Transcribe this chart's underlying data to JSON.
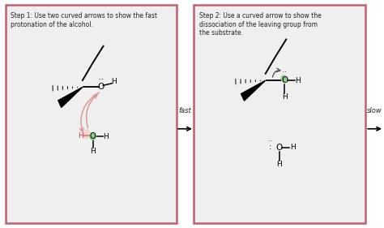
{
  "panel1_title": "Step 1: Use two curved arrows to show the fast\nprotonation of the alcohol.",
  "panel2_title": "Step 2: Use a curved arrow to show the\ndissociation of the leaving group from\nthe substrate.",
  "arrow1_label": "fast",
  "arrow2_label": "slow",
  "panel_bg": "#efefef",
  "border_color": "#c06070",
  "text_color": "#222222",
  "white": "#ffffff",
  "green_dot": "#88cc88",
  "pink_arrow": "#e09090",
  "dark": "#111111"
}
